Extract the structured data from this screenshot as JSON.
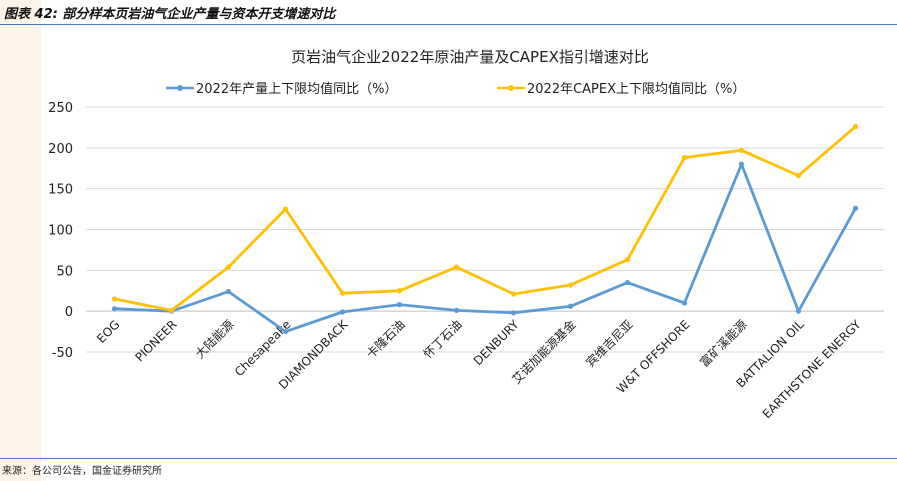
{
  "figure": {
    "label": "图表 42:  部分样本页岩油气企业产量与资本开支增速对比",
    "source": "来源：各公司公告，国金证券研究所"
  },
  "colors": {
    "series1": "#5b9bd5",
    "series2": "#ffc000",
    "grid": "#d9d9d9",
    "text": "#222222",
    "band": "#fdf3e6",
    "rule": "#4a78c2"
  },
  "chart_data": {
    "type": "line",
    "title": "页岩油气企业2022年原油产量及CAPEX指引增速对比",
    "legend_position": "top",
    "grid": true,
    "ylim": [
      -50,
      250
    ],
    "yticks": [
      "250",
      "200",
      "150",
      "100",
      "50",
      "0",
      "-50"
    ],
    "categories": [
      "EOG",
      "PIONEER",
      "大陆能源",
      "Chesapeake",
      "DIAMONDBACK",
      "卡隆石油",
      "怀丁石油",
      "DENBURY",
      "艾诺加能源基金",
      "宾维吉尼亚",
      "W&T OFFSHORE",
      "富矿溪能源",
      "BATTALION OIL",
      "EARTHSTONE ENERGY"
    ],
    "series": [
      {
        "name": "2022年产量上下限均值同比（%）",
        "values": [
          3,
          0,
          24,
          -25,
          -1,
          8,
          1,
          -2,
          6,
          35,
          10,
          180,
          0,
          126
        ]
      },
      {
        "name": "2022年CAPEX上下限均值同比（%）",
        "values": [
          15,
          1,
          54,
          125,
          22,
          25,
          54,
          21,
          32,
          63,
          188,
          197,
          166,
          226
        ]
      }
    ]
  }
}
